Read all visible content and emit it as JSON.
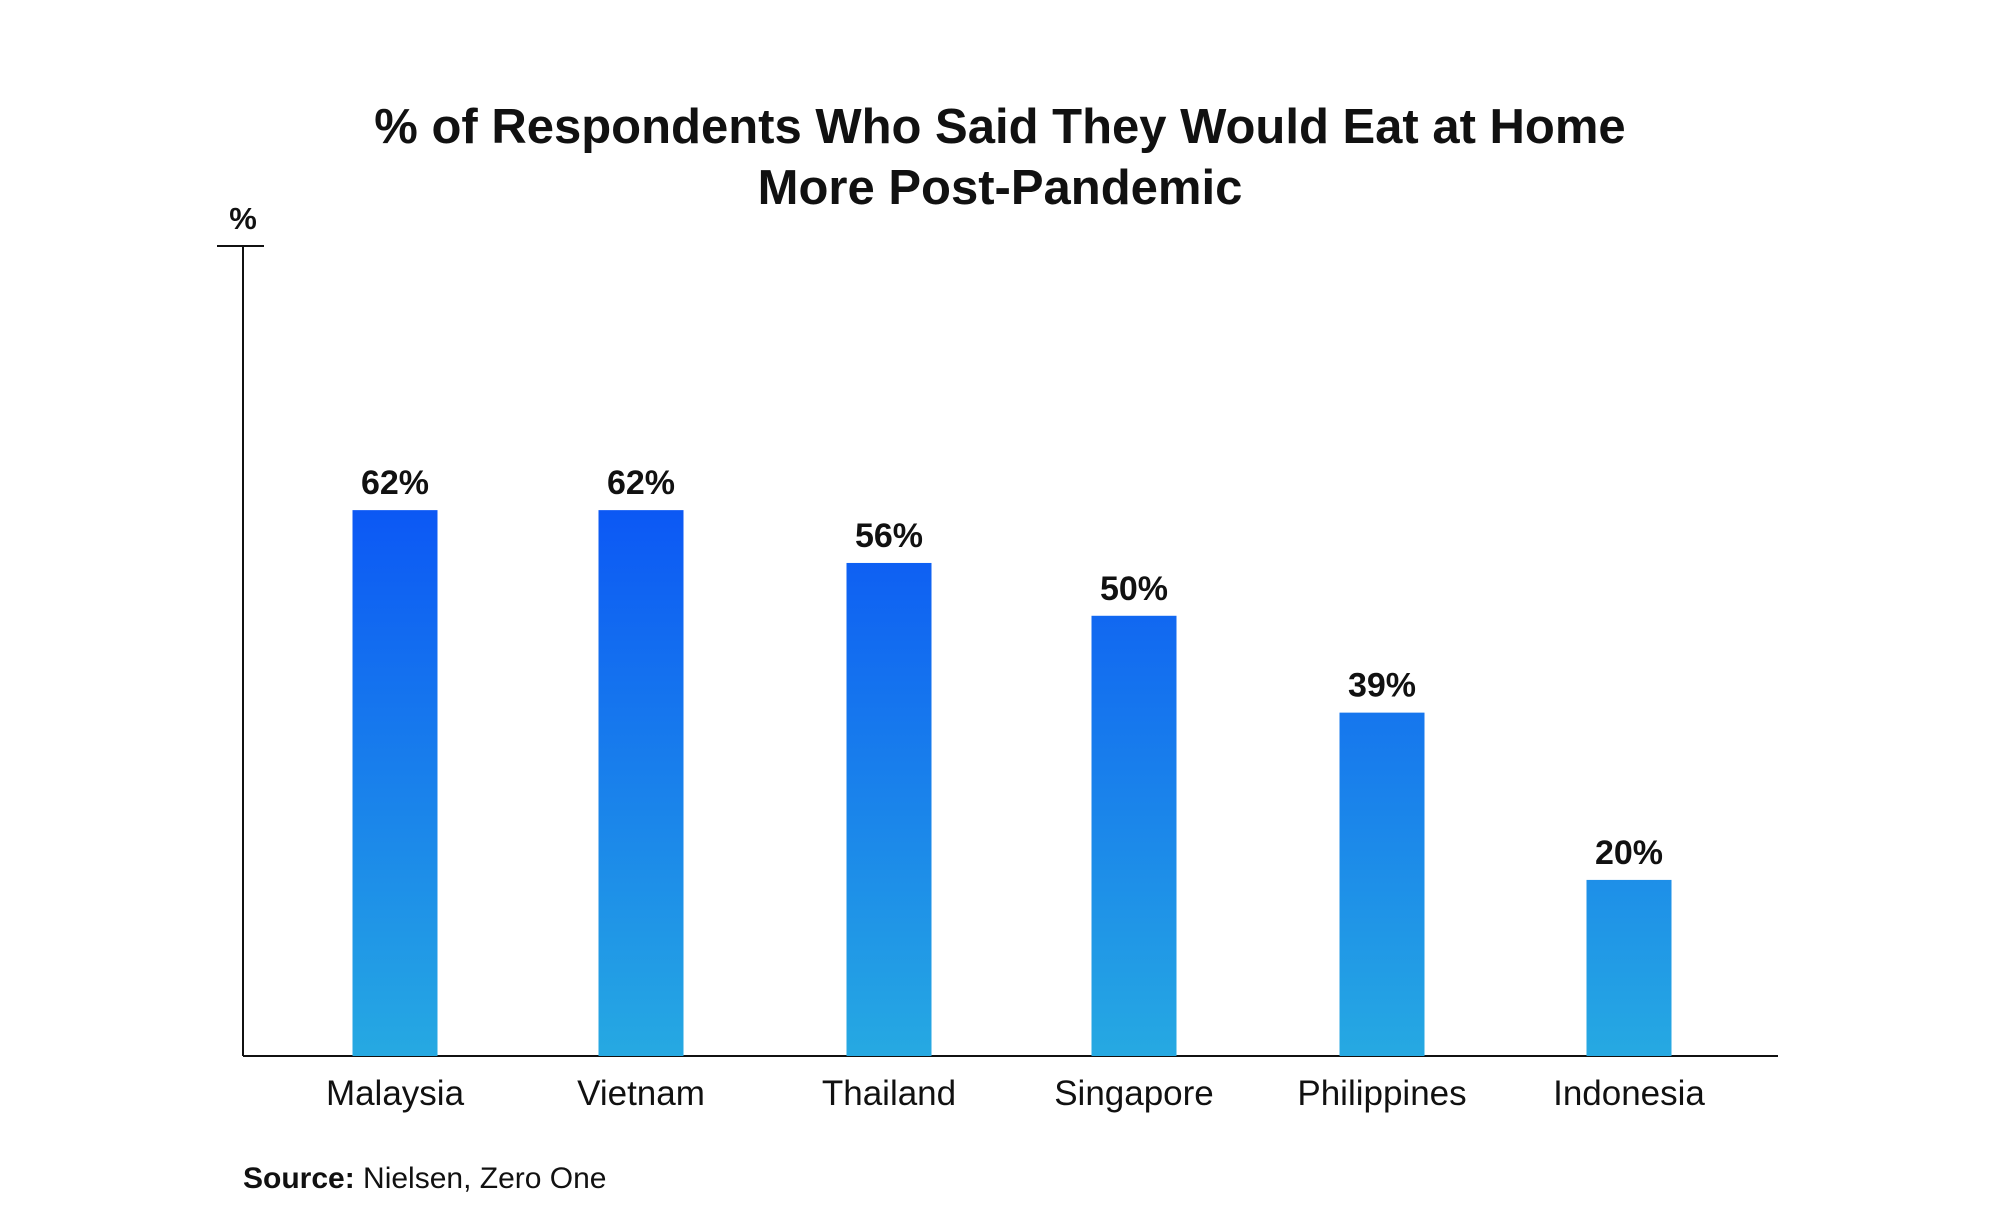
{
  "chart_data": {
    "type": "bar",
    "title_lines": [
      "% of Respondents Who Said They Would Eat at Home",
      "More Post-Pandemic"
    ],
    "ylabel": "%",
    "xlabel": "",
    "categories": [
      "Malaysia",
      "Vietnam",
      "Thailand",
      "Singapore",
      "Philippines",
      "Indonesia"
    ],
    "values": [
      62,
      62,
      56,
      50,
      39,
      20
    ],
    "value_labels": [
      "62%",
      "62%",
      "56%",
      "50%",
      "39%",
      "20%"
    ],
    "ylim": [
      0,
      92
    ],
    "grid": false,
    "legend": "none",
    "colors": {
      "bar_gradient_top": "#0A52F6",
      "bar_gradient_bottom": "#26A9E2",
      "axis": "#111111",
      "text": "#111111"
    }
  },
  "source": {
    "label": "Source:",
    "text": "Nielsen, Zero One"
  }
}
